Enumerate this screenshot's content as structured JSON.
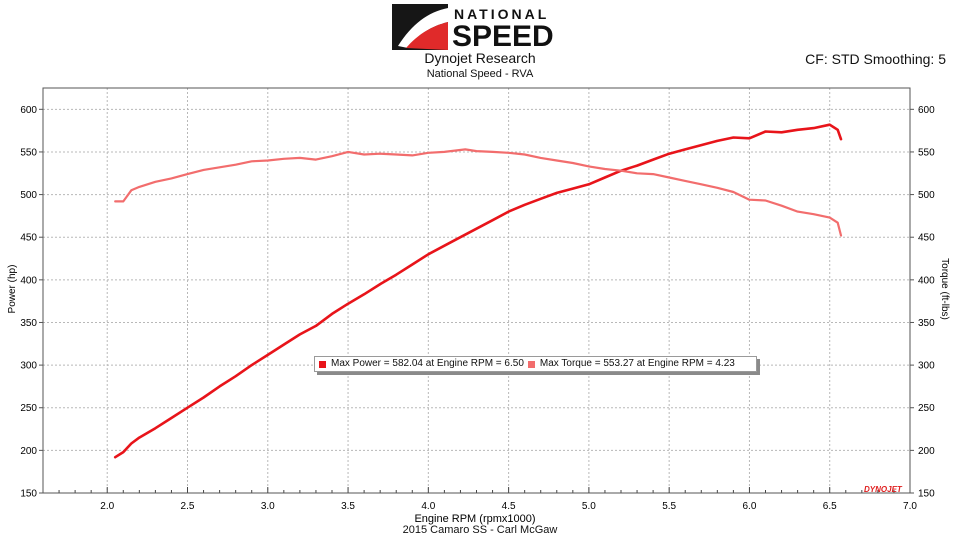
{
  "logo": {
    "line1": "NATIONAL",
    "line2": "SPEED"
  },
  "header": {
    "title": "Dynojet Research",
    "subtitle": "National Speed - RVA",
    "correction": "CF: STD Smoothing: 5"
  },
  "footer": {
    "run_label": "2015 Camaro SS - Carl McGaw"
  },
  "legend": {
    "power_label": "Max Power = 582.04 at Engine RPM = 6.50",
    "torque_label": "Max Torque = 553.27 at Engine RPM = 4.23"
  },
  "badge": "DYNOJET",
  "colors": {
    "power": "#e8141a",
    "torque": "#f26d6d",
    "grid": "#b8b8b8"
  },
  "chart_data": {
    "type": "line",
    "xlabel": "Engine RPM (rpmx1000)",
    "ylabel": "Power (hp)",
    "ylabel_right": "Torque (ft-lbs)",
    "xlim": [
      1.6,
      7.0
    ],
    "ylim": [
      150,
      625
    ],
    "ylim_right": [
      150,
      625
    ],
    "x_ticks": [
      "2.0",
      "2.5",
      "3.0",
      "3.5",
      "4.0",
      "4.5",
      "5.0",
      "5.5",
      "6.0",
      "6.5",
      "7.0"
    ],
    "y_ticks": [
      "150",
      "200",
      "250",
      "300",
      "350",
      "400",
      "450",
      "500",
      "550",
      "600"
    ],
    "grid": true,
    "legend_position": "center",
    "series": [
      {
        "name": "Power",
        "x": [
          2.05,
          2.1,
          2.15,
          2.2,
          2.3,
          2.4,
          2.5,
          2.6,
          2.7,
          2.8,
          2.9,
          3.0,
          3.1,
          3.2,
          3.3,
          3.4,
          3.5,
          3.6,
          3.7,
          3.8,
          3.9,
          4.0,
          4.1,
          4.2,
          4.3,
          4.4,
          4.5,
          4.6,
          4.7,
          4.8,
          4.9,
          5.0,
          5.1,
          5.2,
          5.3,
          5.4,
          5.5,
          5.6,
          5.7,
          5.8,
          5.9,
          6.0,
          6.1,
          6.2,
          6.3,
          6.4,
          6.5,
          6.55,
          6.57
        ],
        "values": [
          192,
          198,
          208,
          215,
          226,
          238,
          250,
          262,
          275,
          287,
          300,
          312,
          324,
          336,
          346,
          360,
          372,
          383,
          395,
          406,
          418,
          430,
          440,
          450,
          460,
          470,
          480,
          488,
          495,
          502,
          507,
          512,
          520,
          528,
          534,
          541,
          548,
          553,
          558,
          563,
          567,
          566,
          574,
          573,
          576,
          578,
          582,
          576,
          565
        ]
      },
      {
        "name": "Torque",
        "x": [
          2.05,
          2.1,
          2.15,
          2.2,
          2.3,
          2.4,
          2.5,
          2.6,
          2.7,
          2.8,
          2.9,
          3.0,
          3.1,
          3.2,
          3.3,
          3.4,
          3.5,
          3.6,
          3.7,
          3.8,
          3.9,
          4.0,
          4.1,
          4.23,
          4.3,
          4.4,
          4.5,
          4.6,
          4.7,
          4.8,
          4.9,
          5.0,
          5.1,
          5.2,
          5.3,
          5.4,
          5.5,
          5.6,
          5.7,
          5.8,
          5.9,
          6.0,
          6.1,
          6.2,
          6.3,
          6.4,
          6.5,
          6.55,
          6.57
        ],
        "values": [
          492,
          492,
          505,
          509,
          515,
          519,
          524,
          529,
          532,
          535,
          539,
          540,
          542,
          543,
          541,
          545,
          550,
          547,
          548,
          547,
          546,
          549,
          550,
          553,
          551,
          550,
          549,
          547,
          543,
          540,
          537,
          533,
          530,
          528,
          525,
          524,
          520,
          516,
          512,
          508,
          503,
          494,
          493,
          487,
          480,
          477,
          473,
          467,
          452
        ]
      }
    ]
  }
}
